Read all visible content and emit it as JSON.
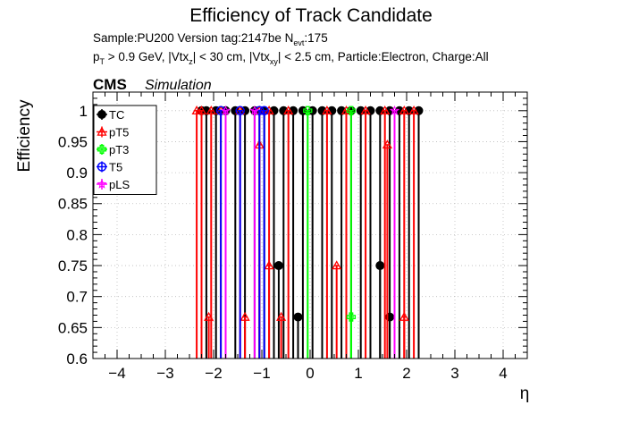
{
  "chart_data": {
    "type": "scatter",
    "title": "Efficiency of Track Candidate",
    "info_line1": {
      "prefix": "Sample:PU200   Version tag:2147be  N",
      "sub": "evt",
      "suffix": ":175"
    },
    "info_line2": [
      {
        "t": "p"
      },
      {
        "t": "T",
        "sub": true
      },
      {
        "t": " > 0.9 GeV, |Vtx"
      },
      {
        "t": "z",
        "sub": true
      },
      {
        "t": "| < 30 cm, |Vtx"
      },
      {
        "t": "xy",
        "sub": true
      },
      {
        "t": "| < 2.5 cm, Particle:Electron, Charge:All"
      }
    ],
    "cms_label": "CMS",
    "sim_label": "Simulation",
    "xlabel": "η",
    "ylabel": "Efficiency",
    "xlim": [
      -4.5,
      4.5
    ],
    "ylim": [
      0.6,
      1.03
    ],
    "x_ticks": [
      -4,
      -3,
      -2,
      -1,
      0,
      1,
      2,
      3,
      4
    ],
    "x_tick_labels": [
      "−4",
      "−3",
      "−2",
      "−1",
      "0",
      "1",
      "2",
      "3",
      "4"
    ],
    "y_ticks": [
      0.6,
      0.65,
      0.7,
      0.75,
      0.8,
      0.85,
      0.9,
      0.95,
      1.0
    ],
    "y_tick_labels": [
      "0.6",
      "0.65",
      "0.7",
      "0.75",
      "0.8",
      "0.85",
      "0.9",
      "0.95",
      "1"
    ],
    "grid": true,
    "legend_position": "top-left",
    "series": [
      {
        "name": "TC",
        "color": "#000000",
        "marker": "filled-circle",
        "points": [
          {
            "x": -2.25,
            "y": 1.0
          },
          {
            "x": -2.15,
            "y": 1.0
          },
          {
            "x": -1.95,
            "y": 1.0
          },
          {
            "x": -1.75,
            "y": 1.0
          },
          {
            "x": -1.55,
            "y": 1.0
          },
          {
            "x": -1.35,
            "y": 1.0
          },
          {
            "x": -1.15,
            "y": 1.0
          },
          {
            "x": -0.95,
            "y": 1.0
          },
          {
            "x": -0.75,
            "y": 1.0
          },
          {
            "x": -0.55,
            "y": 1.0
          },
          {
            "x": -0.35,
            "y": 1.0
          },
          {
            "x": -0.15,
            "y": 1.0
          },
          {
            "x": 0.05,
            "y": 1.0
          },
          {
            "x": 0.25,
            "y": 1.0
          },
          {
            "x": 0.45,
            "y": 1.0
          },
          {
            "x": 0.65,
            "y": 1.0
          },
          {
            "x": 0.85,
            "y": 1.0
          },
          {
            "x": 1.05,
            "y": 1.0
          },
          {
            "x": 1.25,
            "y": 1.0
          },
          {
            "x": 1.45,
            "y": 1.0
          },
          {
            "x": 1.65,
            "y": 1.0
          },
          {
            "x": 1.85,
            "y": 1.0
          },
          {
            "x": 2.05,
            "y": 1.0
          },
          {
            "x": 2.25,
            "y": 1.0
          },
          {
            "x": -0.65,
            "y": 0.75
          },
          {
            "x": 1.45,
            "y": 0.75
          },
          {
            "x": -0.25,
            "y": 0.667
          },
          {
            "x": 1.65,
            "y": 0.667
          }
        ]
      },
      {
        "name": "pT5",
        "color": "#ff0000",
        "marker": "open-triangle",
        "points": [
          {
            "x": -2.35,
            "y": 1.0
          },
          {
            "x": -2.25,
            "y": 1.0
          },
          {
            "x": -2.05,
            "y": 1.0
          },
          {
            "x": -1.85,
            "y": 1.0
          },
          {
            "x": -1.45,
            "y": 1.0
          },
          {
            "x": -1.05,
            "y": 1.0
          },
          {
            "x": -0.85,
            "y": 1.0
          },
          {
            "x": -0.45,
            "y": 1.0
          },
          {
            "x": 0.35,
            "y": 1.0
          },
          {
            "x": 0.75,
            "y": 1.0
          },
          {
            "x": 1.15,
            "y": 1.0
          },
          {
            "x": 1.55,
            "y": 1.0
          },
          {
            "x": 1.95,
            "y": 1.0
          },
          {
            "x": 2.15,
            "y": 1.0
          },
          {
            "x": -2.1,
            "y": 0.667
          },
          {
            "x": -1.35,
            "y": 0.667
          },
          {
            "x": -0.85,
            "y": 0.75
          },
          {
            "x": -0.6,
            "y": 0.667
          },
          {
            "x": 0.55,
            "y": 0.75
          },
          {
            "x": 1.95,
            "y": 0.667
          },
          {
            "x": -1.05,
            "y": 0.945
          },
          {
            "x": 1.6,
            "y": 0.945
          }
        ]
      },
      {
        "name": "pT3",
        "color": "#00ff00",
        "marker": "open-cross",
        "points": [
          {
            "x": -0.05,
            "y": 1.0
          },
          {
            "x": 0.85,
            "y": 1.0
          },
          {
            "x": 0.85,
            "y": 0.667
          }
        ]
      },
      {
        "name": "T5",
        "color": "#0000ff",
        "marker": "open-circle",
        "points": [
          {
            "x": -1.85,
            "y": 1.0
          },
          {
            "x": -1.45,
            "y": 1.0
          },
          {
            "x": -1.05,
            "y": 1.0
          },
          {
            "x": -0.95,
            "y": 1.0
          }
        ]
      },
      {
        "name": "pLS",
        "color": "#ff00ff",
        "marker": "open-star",
        "points": [
          {
            "x": -1.75,
            "y": 1.0
          },
          {
            "x": -1.15,
            "y": 1.0
          },
          {
            "x": 1.75,
            "y": 1.0
          }
        ]
      }
    ]
  }
}
